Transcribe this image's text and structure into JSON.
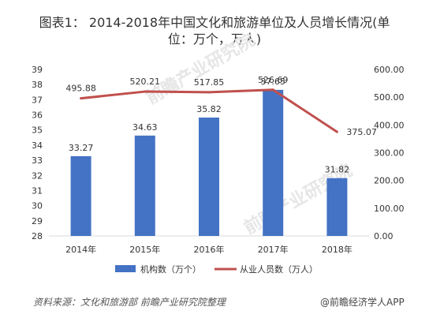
{
  "title_line1": "图表1： 2014-2018年中国文化和旅游单位及人员增长情况(单",
  "title_line2": "位：万个，万人)",
  "source": "资料来源：文化和旅游部 前瞻产业研究院整理",
  "brand": "@前瞻经济学人APP",
  "watermark": "前瞻产业研究院",
  "colors": {
    "bar": "#4472C4",
    "line": "#C0504D",
    "text": "#333333",
    "axis": "#D9D9D9"
  },
  "chart_data": {
    "type": "bar",
    "categories": [
      "2014年",
      "2015年",
      "2016年",
      "2017年",
      "2018年"
    ],
    "series": [
      {
        "name": "机构数（万个）",
        "type": "bar",
        "axis": "left",
        "values": [
          33.27,
          34.63,
          35.82,
          37.65,
          31.82
        ]
      },
      {
        "name": "从业人员数（万人）",
        "type": "line",
        "axis": "right",
        "values": [
          495.88,
          520.21,
          517.85,
          526.69,
          375.07
        ]
      }
    ],
    "y_left": {
      "min": 28,
      "max": 39,
      "step": 1
    },
    "y_right": {
      "min": 0,
      "max": 600,
      "step": 100,
      "decimals": 2
    },
    "legend_position": "bottom",
    "grid": false
  }
}
